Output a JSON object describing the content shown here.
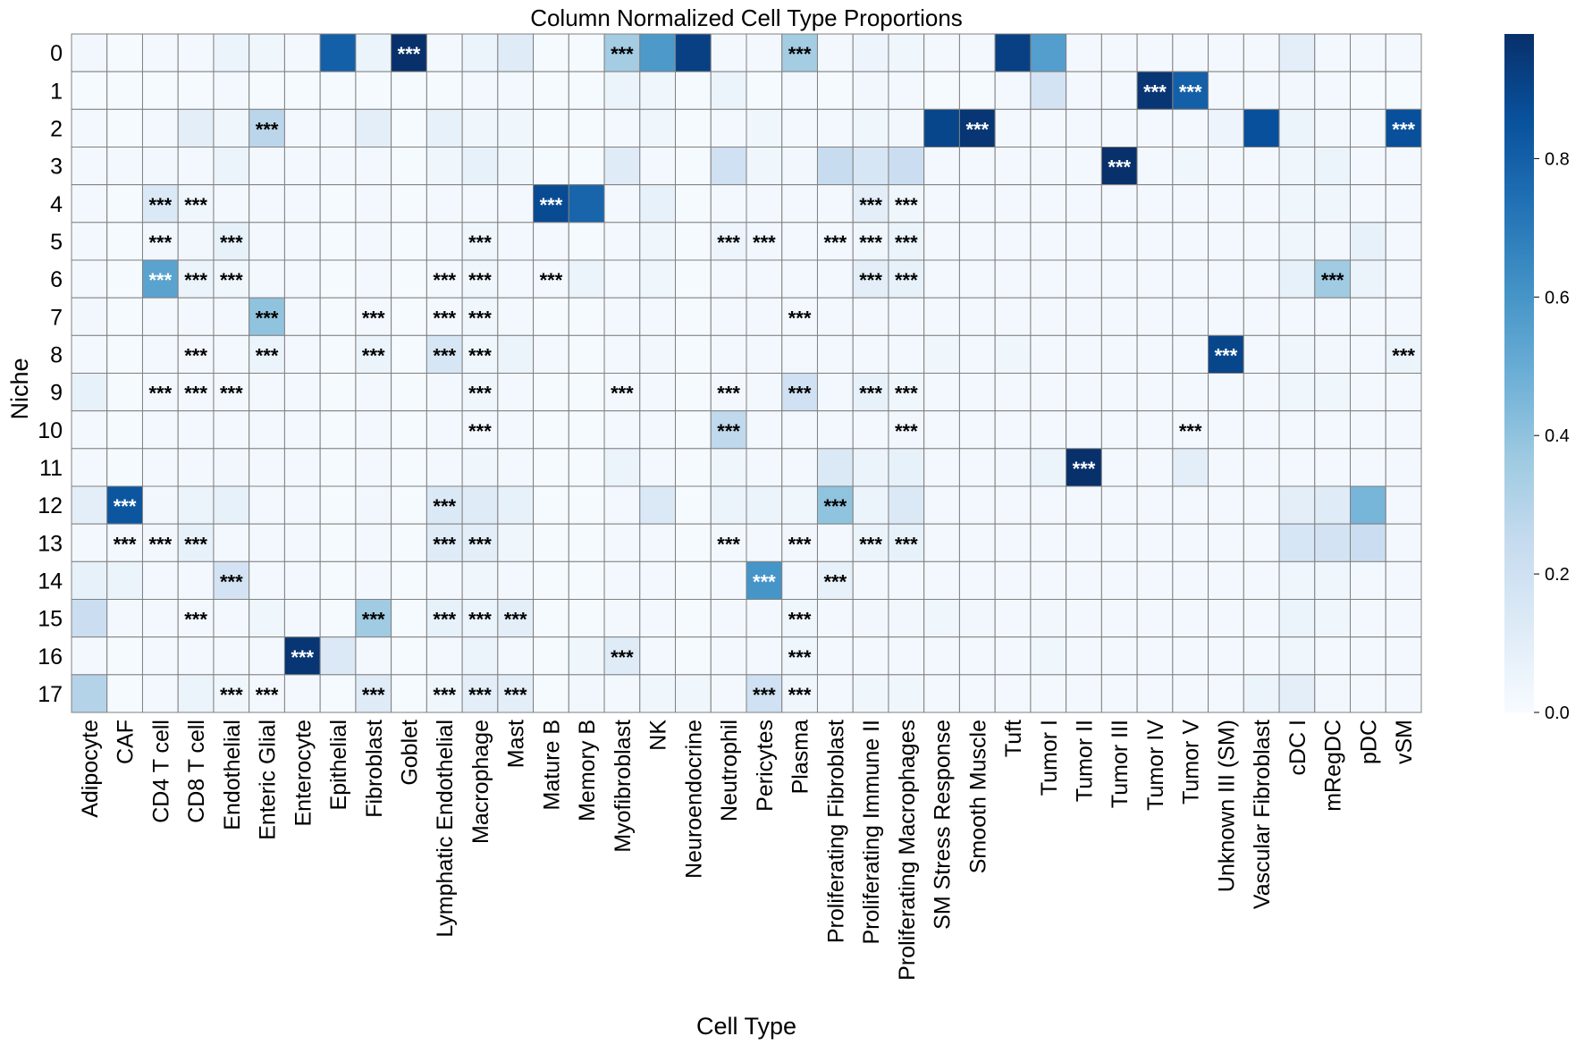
{
  "chart_data": {
    "type": "heatmap",
    "title": "Column Normalized Cell Type Proportions",
    "xlabel": "Cell Type",
    "ylabel": "Niche",
    "rows": [
      "0",
      "1",
      "2",
      "3",
      "4",
      "5",
      "6",
      "7",
      "8",
      "9",
      "10",
      "11",
      "12",
      "13",
      "14",
      "15",
      "16",
      "17"
    ],
    "columns": [
      "Adipocyte",
      "CAF",
      "CD4 T cell",
      "CD8 T cell",
      "Endothelial",
      "Enteric Glial",
      "Enterocyte",
      "Epithelial",
      "Fibroblast",
      "Goblet",
      "Lymphatic Endothelial",
      "Macrophage",
      "Mast",
      "Mature B",
      "Memory B",
      "Myofibroblast",
      "NK",
      "Neuroendocrine",
      "Neutrophil",
      "Pericytes",
      "Plasma",
      "Proliferating Fibroblast",
      "Proliferating Immune II",
      "Proliferating Macrophages",
      "SM Stress Response",
      "Smooth Muscle",
      "Tuft",
      "Tumor I",
      "Tumor II",
      "Tumor III",
      "Tumor IV",
      "Tumor V",
      "Unknown III (SM)",
      "Vascular Fibroblast",
      "cDC I",
      "mRegDC",
      "pDC",
      "vSM"
    ],
    "colormap": "Blues",
    "color_min": "#f7fbff",
    "color_max": "#08306b",
    "colorbar": {
      "range": [
        0,
        0.98
      ],
      "ticks": [
        "0.0",
        "0.2",
        "0.4",
        "0.6",
        "0.8"
      ],
      "tick_values": [
        0,
        0.2,
        0.4,
        0.6,
        0.8
      ]
    },
    "grid": true,
    "annotation_label": "***",
    "values": [
      [
        0.03,
        0.01,
        0.02,
        0.02,
        0.06,
        0.04,
        0.02,
        0.8,
        0.06,
        0.98,
        0.02,
        0.06,
        0.12,
        0.01,
        0.01,
        0.35,
        0.58,
        0.92,
        0.02,
        0.02,
        0.35,
        0.02,
        0.05,
        0.04,
        0.02,
        0.02,
        0.92,
        0.56,
        0.02,
        0.02,
        0.02,
        0.02,
        0.02,
        0.02,
        0.1,
        0.02,
        0.02,
        0.02
      ],
      [
        0.01,
        0.01,
        0.01,
        0.01,
        0.02,
        0.01,
        0.01,
        0.01,
        0.01,
        0.01,
        0.01,
        0.02,
        0.02,
        0.01,
        0.01,
        0.06,
        0.04,
        0.01,
        0.06,
        0.01,
        0.02,
        0.01,
        0.03,
        0.02,
        0.01,
        0.01,
        0.02,
        0.18,
        0.02,
        0.02,
        0.96,
        0.8,
        0.02,
        0.02,
        0.03,
        0.02,
        0.01,
        0.01
      ],
      [
        0.02,
        0.01,
        0.02,
        0.1,
        0.04,
        0.28,
        0.02,
        0.02,
        0.1,
        0.01,
        0.08,
        0.04,
        0.04,
        0.01,
        0.01,
        0.02,
        0.04,
        0.01,
        0.02,
        0.04,
        0.02,
        0.02,
        0.04,
        0.03,
        0.9,
        0.96,
        0.02,
        0.02,
        0.02,
        0.02,
        0.02,
        0.02,
        0.05,
        0.86,
        0.06,
        0.03,
        0.02,
        0.86
      ],
      [
        0.02,
        0.02,
        0.03,
        0.02,
        0.06,
        0.02,
        0.02,
        0.02,
        0.02,
        0.01,
        0.04,
        0.08,
        0.04,
        0.01,
        0.01,
        0.12,
        0.02,
        0.01,
        0.2,
        0.04,
        0.03,
        0.24,
        0.16,
        0.22,
        0.02,
        0.02,
        0.02,
        0.03,
        0.02,
        0.98,
        0.02,
        0.04,
        0.02,
        0.02,
        0.04,
        0.06,
        0.02,
        0.02
      ],
      [
        0.02,
        0.01,
        0.14,
        0.04,
        0.02,
        0.02,
        0.02,
        0.01,
        0.02,
        0.01,
        0.02,
        0.02,
        0.02,
        0.88,
        0.78,
        0.02,
        0.08,
        0.01,
        0.02,
        0.02,
        0.02,
        0.02,
        0.1,
        0.04,
        0.02,
        0.02,
        0.02,
        0.02,
        0.02,
        0.02,
        0.02,
        0.02,
        0.02,
        0.02,
        0.04,
        0.04,
        0.02,
        0.02
      ],
      [
        0.02,
        0.01,
        0.03,
        0.03,
        0.08,
        0.02,
        0.02,
        0.01,
        0.02,
        0.01,
        0.02,
        0.04,
        0.02,
        0.02,
        0.01,
        0.02,
        0.04,
        0.01,
        0.05,
        0.03,
        0.02,
        0.02,
        0.04,
        0.06,
        0.02,
        0.02,
        0.02,
        0.02,
        0.02,
        0.02,
        0.02,
        0.02,
        0.02,
        0.02,
        0.04,
        0.03,
        0.08,
        0.02
      ],
      [
        0.02,
        0.01,
        0.54,
        0.06,
        0.04,
        0.02,
        0.02,
        0.01,
        0.02,
        0.01,
        0.02,
        0.04,
        0.02,
        0.02,
        0.06,
        0.02,
        0.04,
        0.01,
        0.02,
        0.02,
        0.02,
        0.02,
        0.1,
        0.08,
        0.02,
        0.02,
        0.02,
        0.02,
        0.02,
        0.02,
        0.02,
        0.02,
        0.02,
        0.02,
        0.08,
        0.36,
        0.06,
        0.02
      ],
      [
        0.03,
        0.01,
        0.02,
        0.02,
        0.02,
        0.4,
        0.02,
        0.01,
        0.02,
        0.01,
        0.02,
        0.04,
        0.02,
        0.01,
        0.01,
        0.02,
        0.02,
        0.01,
        0.02,
        0.02,
        0.02,
        0.02,
        0.02,
        0.02,
        0.02,
        0.02,
        0.02,
        0.02,
        0.02,
        0.02,
        0.02,
        0.02,
        0.02,
        0.02,
        0.02,
        0.02,
        0.02,
        0.02
      ],
      [
        0.02,
        0.01,
        0.02,
        0.02,
        0.02,
        0.06,
        0.02,
        0.01,
        0.06,
        0.01,
        0.16,
        0.04,
        0.06,
        0.02,
        0.01,
        0.02,
        0.03,
        0.01,
        0.02,
        0.02,
        0.02,
        0.02,
        0.02,
        0.02,
        0.04,
        0.02,
        0.04,
        0.02,
        0.02,
        0.02,
        0.02,
        0.02,
        0.9,
        0.02,
        0.04,
        0.03,
        0.02,
        0.06
      ],
      [
        0.08,
        0.01,
        0.02,
        0.02,
        0.02,
        0.02,
        0.02,
        0.01,
        0.02,
        0.01,
        0.02,
        0.04,
        0.02,
        0.01,
        0.01,
        0.02,
        0.02,
        0.01,
        0.02,
        0.02,
        0.2,
        0.02,
        0.08,
        0.04,
        0.02,
        0.02,
        0.02,
        0.02,
        0.02,
        0.02,
        0.02,
        0.02,
        0.02,
        0.02,
        0.04,
        0.04,
        0.02,
        0.02
      ],
      [
        0.02,
        0.01,
        0.02,
        0.02,
        0.02,
        0.02,
        0.02,
        0.01,
        0.02,
        0.01,
        0.02,
        0.02,
        0.02,
        0.01,
        0.01,
        0.02,
        0.02,
        0.01,
        0.26,
        0.02,
        0.02,
        0.02,
        0.02,
        0.03,
        0.02,
        0.02,
        0.02,
        0.02,
        0.02,
        0.02,
        0.02,
        0.02,
        0.02,
        0.02,
        0.02,
        0.02,
        0.02,
        0.02
      ],
      [
        0.02,
        0.01,
        0.02,
        0.02,
        0.03,
        0.02,
        0.02,
        0.01,
        0.02,
        0.01,
        0.02,
        0.04,
        0.02,
        0.01,
        0.01,
        0.06,
        0.02,
        0.01,
        0.04,
        0.02,
        0.02,
        0.14,
        0.06,
        0.08,
        0.02,
        0.02,
        0.03,
        0.06,
        0.98,
        0.02,
        0.02,
        0.1,
        0.02,
        0.02,
        0.02,
        0.02,
        0.02,
        0.02
      ],
      [
        0.1,
        0.84,
        0.03,
        0.06,
        0.08,
        0.02,
        0.02,
        0.01,
        0.03,
        0.01,
        0.14,
        0.12,
        0.08,
        0.01,
        0.01,
        0.02,
        0.14,
        0.01,
        0.06,
        0.06,
        0.04,
        0.4,
        0.06,
        0.14,
        0.02,
        0.02,
        0.02,
        0.02,
        0.02,
        0.02,
        0.02,
        0.02,
        0.02,
        0.02,
        0.1,
        0.12,
        0.46,
        0.02
      ],
      [
        0.02,
        0.02,
        0.03,
        0.08,
        0.02,
        0.02,
        0.02,
        0.01,
        0.02,
        0.01,
        0.12,
        0.1,
        0.04,
        0.01,
        0.01,
        0.02,
        0.02,
        0.01,
        0.02,
        0.02,
        0.03,
        0.02,
        0.06,
        0.08,
        0.02,
        0.02,
        0.02,
        0.02,
        0.02,
        0.02,
        0.02,
        0.02,
        0.02,
        0.02,
        0.16,
        0.18,
        0.22,
        0.02
      ],
      [
        0.08,
        0.06,
        0.02,
        0.02,
        0.18,
        0.02,
        0.02,
        0.01,
        0.02,
        0.01,
        0.02,
        0.04,
        0.02,
        0.01,
        0.01,
        0.02,
        0.02,
        0.01,
        0.02,
        0.6,
        0.02,
        0.08,
        0.02,
        0.02,
        0.02,
        0.02,
        0.02,
        0.02,
        0.02,
        0.02,
        0.02,
        0.02,
        0.02,
        0.02,
        0.04,
        0.04,
        0.02,
        0.02
      ],
      [
        0.22,
        0.02,
        0.02,
        0.02,
        0.02,
        0.04,
        0.02,
        0.01,
        0.36,
        0.01,
        0.08,
        0.06,
        0.1,
        0.01,
        0.01,
        0.02,
        0.02,
        0.01,
        0.02,
        0.02,
        0.04,
        0.02,
        0.03,
        0.03,
        0.04,
        0.03,
        0.02,
        0.03,
        0.02,
        0.02,
        0.02,
        0.02,
        0.02,
        0.02,
        0.06,
        0.04,
        0.02,
        0.02
      ],
      [
        0.02,
        0.01,
        0.02,
        0.02,
        0.02,
        0.02,
        0.96,
        0.14,
        0.02,
        0.01,
        0.02,
        0.06,
        0.02,
        0.01,
        0.04,
        0.12,
        0.02,
        0.01,
        0.02,
        0.02,
        0.04,
        0.02,
        0.02,
        0.02,
        0.02,
        0.02,
        0.02,
        0.04,
        0.02,
        0.02,
        0.02,
        0.02,
        0.02,
        0.02,
        0.04,
        0.02,
        0.02,
        0.02
      ],
      [
        0.3,
        0.01,
        0.02,
        0.06,
        0.04,
        0.02,
        0.02,
        0.01,
        0.12,
        0.01,
        0.04,
        0.1,
        0.1,
        0.01,
        0.03,
        0.02,
        0.04,
        0.04,
        0.02,
        0.2,
        0.04,
        0.02,
        0.04,
        0.04,
        0.02,
        0.02,
        0.02,
        0.02,
        0.02,
        0.02,
        0.02,
        0.02,
        0.02,
        0.06,
        0.1,
        0.03,
        0.02,
        0.02
      ]
    ],
    "significant": [
      [
        0,
        9
      ],
      [
        0,
        15
      ],
      [
        0,
        20
      ],
      [
        1,
        30
      ],
      [
        1,
        31
      ],
      [
        2,
        5
      ],
      [
        2,
        25
      ],
      [
        2,
        37
      ],
      [
        3,
        29
      ],
      [
        4,
        2
      ],
      [
        4,
        3
      ],
      [
        4,
        13
      ],
      [
        4,
        22
      ],
      [
        4,
        23
      ],
      [
        5,
        2
      ],
      [
        5,
        4
      ],
      [
        5,
        11
      ],
      [
        5,
        18
      ],
      [
        5,
        19
      ],
      [
        5,
        21
      ],
      [
        5,
        22
      ],
      [
        5,
        23
      ],
      [
        6,
        2
      ],
      [
        6,
        3
      ],
      [
        6,
        4
      ],
      [
        6,
        10
      ],
      [
        6,
        11
      ],
      [
        6,
        13
      ],
      [
        6,
        22
      ],
      [
        6,
        23
      ],
      [
        6,
        35
      ],
      [
        7,
        5
      ],
      [
        7,
        8
      ],
      [
        7,
        10
      ],
      [
        7,
        11
      ],
      [
        7,
        20
      ],
      [
        8,
        3
      ],
      [
        8,
        5
      ],
      [
        8,
        8
      ],
      [
        8,
        10
      ],
      [
        8,
        11
      ],
      [
        8,
        32
      ],
      [
        8,
        37
      ],
      [
        9,
        2
      ],
      [
        9,
        3
      ],
      [
        9,
        4
      ],
      [
        9,
        11
      ],
      [
        9,
        15
      ],
      [
        9,
        18
      ],
      [
        9,
        20
      ],
      [
        9,
        22
      ],
      [
        9,
        23
      ],
      [
        10,
        11
      ],
      [
        10,
        18
      ],
      [
        10,
        23
      ],
      [
        10,
        31
      ],
      [
        11,
        28
      ],
      [
        12,
        1
      ],
      [
        12,
        10
      ],
      [
        12,
        21
      ],
      [
        13,
        1
      ],
      [
        13,
        2
      ],
      [
        13,
        3
      ],
      [
        13,
        10
      ],
      [
        13,
        11
      ],
      [
        13,
        18
      ],
      [
        13,
        20
      ],
      [
        13,
        22
      ],
      [
        13,
        23
      ],
      [
        14,
        4
      ],
      [
        14,
        19
      ],
      [
        14,
        21
      ],
      [
        15,
        3
      ],
      [
        15,
        8
      ],
      [
        15,
        10
      ],
      [
        15,
        11
      ],
      [
        15,
        12
      ],
      [
        15,
        20
      ],
      [
        16,
        6
      ],
      [
        16,
        15
      ],
      [
        16,
        20
      ],
      [
        17,
        4
      ],
      [
        17,
        5
      ],
      [
        17,
        8
      ],
      [
        17,
        10
      ],
      [
        17,
        11
      ],
      [
        17,
        12
      ],
      [
        17,
        19
      ],
      [
        17,
        20
      ]
    ]
  }
}
